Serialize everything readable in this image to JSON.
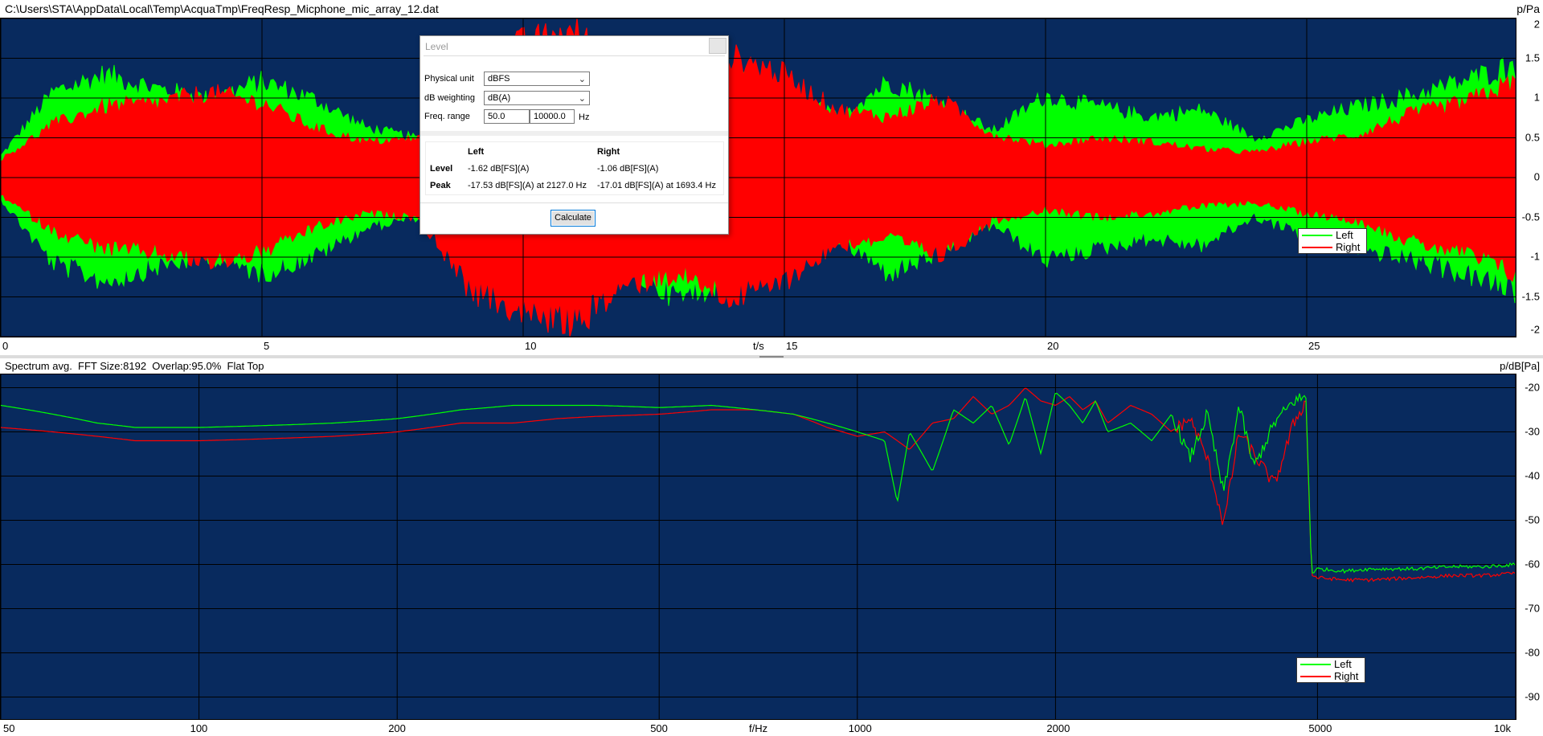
{
  "window": {
    "file_path": "C:\\Users\\STA\\AppData\\Local\\Temp\\AcquaTmp\\FreqResp_Micphone_mic_array_12.dat"
  },
  "colors": {
    "plot_bg": "#082a5e",
    "left": "#00ff00",
    "right": "#ff0000",
    "grid": "#000000"
  },
  "time_plot": {
    "y_unit": "p/Pa",
    "x_unit": "t/s",
    "x_ticks": [
      "0",
      "5",
      "10",
      "15",
      "20",
      "25"
    ],
    "y_ticks": [
      "2",
      "1.5",
      "1",
      "0.5",
      "0",
      "-0.5",
      "-1",
      "-1.5",
      "-2"
    ],
    "legend": [
      "Left",
      "Right"
    ]
  },
  "spectrum_plot": {
    "info": "Spectrum avg.  FFT Size:8192  Overlap:95.0%  Flat Top",
    "y_unit": "p/dB[Pa]",
    "x_unit": "f/Hz",
    "x_ticks": [
      "50",
      "100",
      "200",
      "500",
      "1000",
      "2000",
      "5000",
      "10k"
    ],
    "y_ticks": [
      "-20",
      "-30",
      "-40",
      "-50",
      "-60",
      "-70",
      "-80",
      "-90"
    ],
    "legend": [
      "Left",
      "Right"
    ]
  },
  "chart_data": [
    {
      "type": "area",
      "xlabel": "t/s",
      "ylabel": "p/Pa",
      "xlim": [
        0,
        29
      ],
      "ylim": [
        -2,
        2
      ],
      "grid": true,
      "legend_position": "bottom-right",
      "series": [
        {
          "name": "Left",
          "x": [
            0,
            1,
            2,
            3,
            4,
            5,
            6,
            7,
            8,
            9,
            10,
            11,
            12,
            13,
            14,
            15,
            16,
            17,
            18,
            19,
            20,
            21,
            22,
            23,
            24,
            25,
            26,
            27,
            28,
            29
          ],
          "envelope": [
            0.3,
            1.2,
            1.45,
            1.25,
            1.1,
            1.35,
            1.1,
            0.7,
            0.55,
            1.0,
            1.6,
            1.75,
            1.3,
            1.7,
            1.4,
            1.2,
            0.85,
            1.35,
            1.05,
            0.65,
            1.15,
            1.0,
            0.85,
            0.95,
            0.55,
            0.8,
            1.0,
            1.15,
            1.35,
            1.6
          ]
        },
        {
          "name": "Right",
          "x": [
            0,
            1,
            2,
            3,
            4,
            5,
            6,
            7,
            8,
            9,
            10,
            11,
            12,
            13,
            14,
            15,
            16,
            17,
            18,
            19,
            20,
            21,
            22,
            23,
            24,
            25,
            26,
            27,
            28,
            29
          ],
          "envelope": [
            0.25,
            0.75,
            1.0,
            1.05,
            1.2,
            1.05,
            0.7,
            0.5,
            0.55,
            1.6,
            1.9,
            2.05,
            1.5,
            1.35,
            1.7,
            1.45,
            0.95,
            0.85,
            1.1,
            0.6,
            0.45,
            0.55,
            0.5,
            0.4,
            0.35,
            0.5,
            0.6,
            0.9,
            1.05,
            1.35
          ]
        }
      ]
    },
    {
      "type": "line",
      "xlabel": "f/Hz",
      "ylabel": "p/dB[Pa]",
      "x_scale": "log",
      "xlim": [
        50,
        10000
      ],
      "ylim": [
        -95,
        -17
      ],
      "grid": true,
      "legend_position": "bottom-right",
      "series": [
        {
          "name": "Left",
          "x": [
            50,
            60,
            70,
            80,
            100,
            130,
            160,
            200,
            250,
            300,
            350,
            400,
            500,
            600,
            700,
            800,
            900,
            1000,
            1100,
            1150,
            1200,
            1300,
            1400,
            1500,
            1600,
            1700,
            1800,
            1900,
            2000,
            2100,
            2200,
            2300,
            2400,
            2600,
            2800,
            3000,
            3200,
            3400,
            3600,
            3800,
            4000,
            4300,
            4600,
            4800,
            4900,
            5000,
            5500,
            6000,
            7000,
            8000,
            9000,
            10000
          ],
          "values": [
            -24,
            -26,
            -28,
            -29,
            -29,
            -28.5,
            -28,
            -27,
            -25,
            -24,
            -24,
            -24,
            -24.5,
            -24,
            -25,
            -26,
            -28,
            -30,
            -32,
            -46,
            -30,
            -39,
            -25,
            -28,
            -24,
            -33,
            -22,
            -35,
            -21,
            -24,
            -28,
            -23,
            -30,
            -28,
            -32,
            -26,
            -36,
            -26,
            -44,
            -24,
            -38,
            -28,
            -23,
            -22,
            -62,
            -61,
            -61.5,
            -61,
            -61,
            -60.5,
            -60.5,
            -60
          ]
        },
        {
          "name": "Right",
          "x": [
            50,
            60,
            70,
            80,
            100,
            130,
            160,
            200,
            250,
            300,
            350,
            400,
            500,
            600,
            700,
            800,
            900,
            1000,
            1100,
            1150,
            1200,
            1300,
            1400,
            1500,
            1600,
            1700,
            1800,
            1900,
            2000,
            2100,
            2200,
            2300,
            2400,
            2600,
            2800,
            3000,
            3200,
            3400,
            3600,
            3800,
            4000,
            4300,
            4600,
            4800,
            4900,
            5000,
            5500,
            6000,
            7000,
            8000,
            9000,
            10000
          ],
          "values": [
            -29,
            -30,
            -31,
            -32,
            -32,
            -31.5,
            -31,
            -30,
            -28,
            -28,
            -27,
            -26.5,
            -26,
            -25,
            -25,
            -26,
            -29,
            -31,
            -30,
            -32,
            -34,
            -28,
            -27,
            -22,
            -26,
            -24,
            -20,
            -23,
            -24,
            -22,
            -25,
            -23,
            -28,
            -24,
            -26,
            -30,
            -27,
            -36,
            -51,
            -30,
            -35,
            -42,
            -28,
            -23,
            -62.5,
            -63,
            -63.5,
            -63.5,
            -63,
            -62.5,
            -62.5,
            -62
          ]
        }
      ]
    }
  ],
  "dialog": {
    "title": "Level",
    "physical_unit_label": "Physical unit",
    "physical_unit_value": "dBFS",
    "db_weighting_label": "dB weighting",
    "db_weighting_value": "dB(A)",
    "freq_range_label": "Freq. range",
    "freq_min": "50.0",
    "freq_max": "10000.0",
    "freq_unit": "Hz",
    "col_left": "Left",
    "col_right": "Right",
    "row_level": "Level",
    "row_peak": "Peak",
    "level_left": "-1.62 dB[FS](A)",
    "level_right": "-1.06 dB[FS](A)",
    "peak_left": "-17.53 dB[FS](A) at 2127.0 Hz",
    "peak_right": "-17.01 dB[FS](A) at 1693.4 Hz",
    "calculate_label": "Calculate"
  }
}
